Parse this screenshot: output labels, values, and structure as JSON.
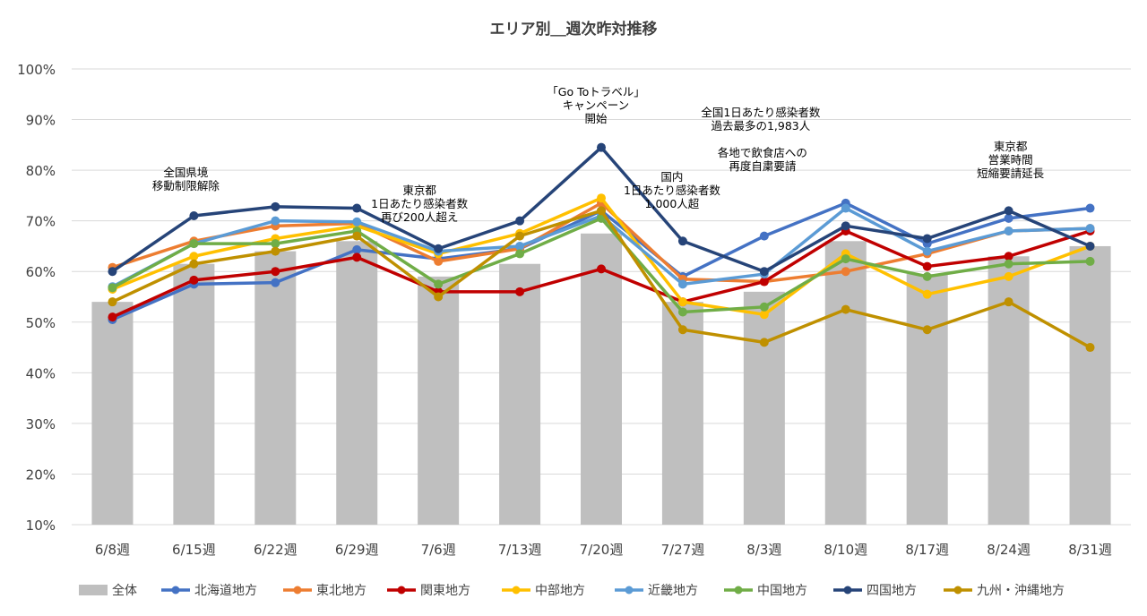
{
  "chart_data": {
    "type": "bar+line",
    "title": "エリア別＿週次昨対推移",
    "categories": [
      "6/8週",
      "6/15週",
      "6/22週",
      "6/29週",
      "7/6週",
      "7/13週",
      "7/20週",
      "7/27週",
      "8/3週",
      "8/10週",
      "8/17週",
      "8/24週",
      "8/31週"
    ],
    "ylim": [
      10,
      100
    ],
    "yticks": [
      "10%",
      "20%",
      "30%",
      "40%",
      "50%",
      "60%",
      "70%",
      "80%",
      "90%",
      "100%"
    ],
    "bar_series": {
      "name": "全体",
      "color": "#bfbfbf",
      "values": [
        54,
        61.5,
        64,
        66,
        59,
        61.5,
        67.5,
        54,
        56,
        66,
        59.5,
        63,
        65
      ]
    },
    "series": [
      {
        "name": "北海道地方",
        "color": "#4472c4",
        "values": [
          50.5,
          57.5,
          57.8,
          64.3,
          62.5,
          64.5,
          72,
          59,
          67,
          73.5,
          65.5,
          70.5,
          72.5
        ]
      },
      {
        "name": "東北地方",
        "color": "#ed7d31",
        "values": [
          60.8,
          66,
          69,
          69.5,
          62,
          64.5,
          73.5,
          58.5,
          58,
          60,
          63.5,
          68,
          68.5
        ]
      },
      {
        "name": "関東地方",
        "color": "#c00000",
        "values": [
          51,
          58.3,
          60,
          62.8,
          56,
          56,
          60.5,
          54,
          58,
          68,
          61,
          63,
          68
        ]
      },
      {
        "name": "中部地方",
        "color": "#ffc000",
        "values": [
          56.5,
          63,
          66.5,
          69,
          63.5,
          67.5,
          74.5,
          54,
          51.5,
          63.5,
          55.5,
          59,
          65
        ]
      },
      {
        "name": "近畿地方",
        "color": "#5b9bd5",
        "values": [
          57,
          65.5,
          70,
          69.8,
          64,
          65,
          71,
          57.5,
          59.5,
          72.5,
          64,
          68,
          68.5
        ]
      },
      {
        "name": "中国地方",
        "color": "#70ad47",
        "values": [
          56.8,
          65.5,
          65.5,
          68,
          57.5,
          63.5,
          70.5,
          52,
          53,
          62.5,
          59,
          61.5,
          62
        ]
      },
      {
        "name": "四国地方",
        "color": "#264478",
        "values": [
          60,
          71,
          72.8,
          72.5,
          64.5,
          70,
          84.5,
          66,
          60,
          69,
          66.5,
          72,
          65
        ]
      },
      {
        "name": "九州・沖縄地方",
        "color": "#bf9000",
        "values": [
          54,
          61.5,
          64,
          67,
          55,
          67,
          72,
          48.5,
          46,
          52.5,
          48.5,
          54,
          45
        ]
      }
    ],
    "annotations": [
      {
        "category": "6/15週",
        "lines": [
          "全国県境",
          "移動制限解除"
        ]
      },
      {
        "category": "7/6週",
        "lines": [
          "東京都",
          "1日あたり感染者数",
          "再び200人超え"
        ]
      },
      {
        "category": "7/20週",
        "lines": [
          "「Go Toトラベル」",
          "キャンペーン",
          "開始"
        ]
      },
      {
        "category": "7/27週",
        "lines": [
          "国内",
          "1日あたり感染者数",
          "1,000人超"
        ]
      },
      {
        "category": "8/3週",
        "lines": [
          "全国1日あたり感染者数",
          "過去最多の1,983人"
        ]
      },
      {
        "category": "8/3週",
        "lines": [
          "各地で飲食店への",
          "再度自粛要請"
        ]
      },
      {
        "category": "8/24週",
        "lines": [
          "東京都",
          "営業時間",
          "短縮要請延長"
        ]
      }
    ],
    "legend_position": "bottom"
  }
}
